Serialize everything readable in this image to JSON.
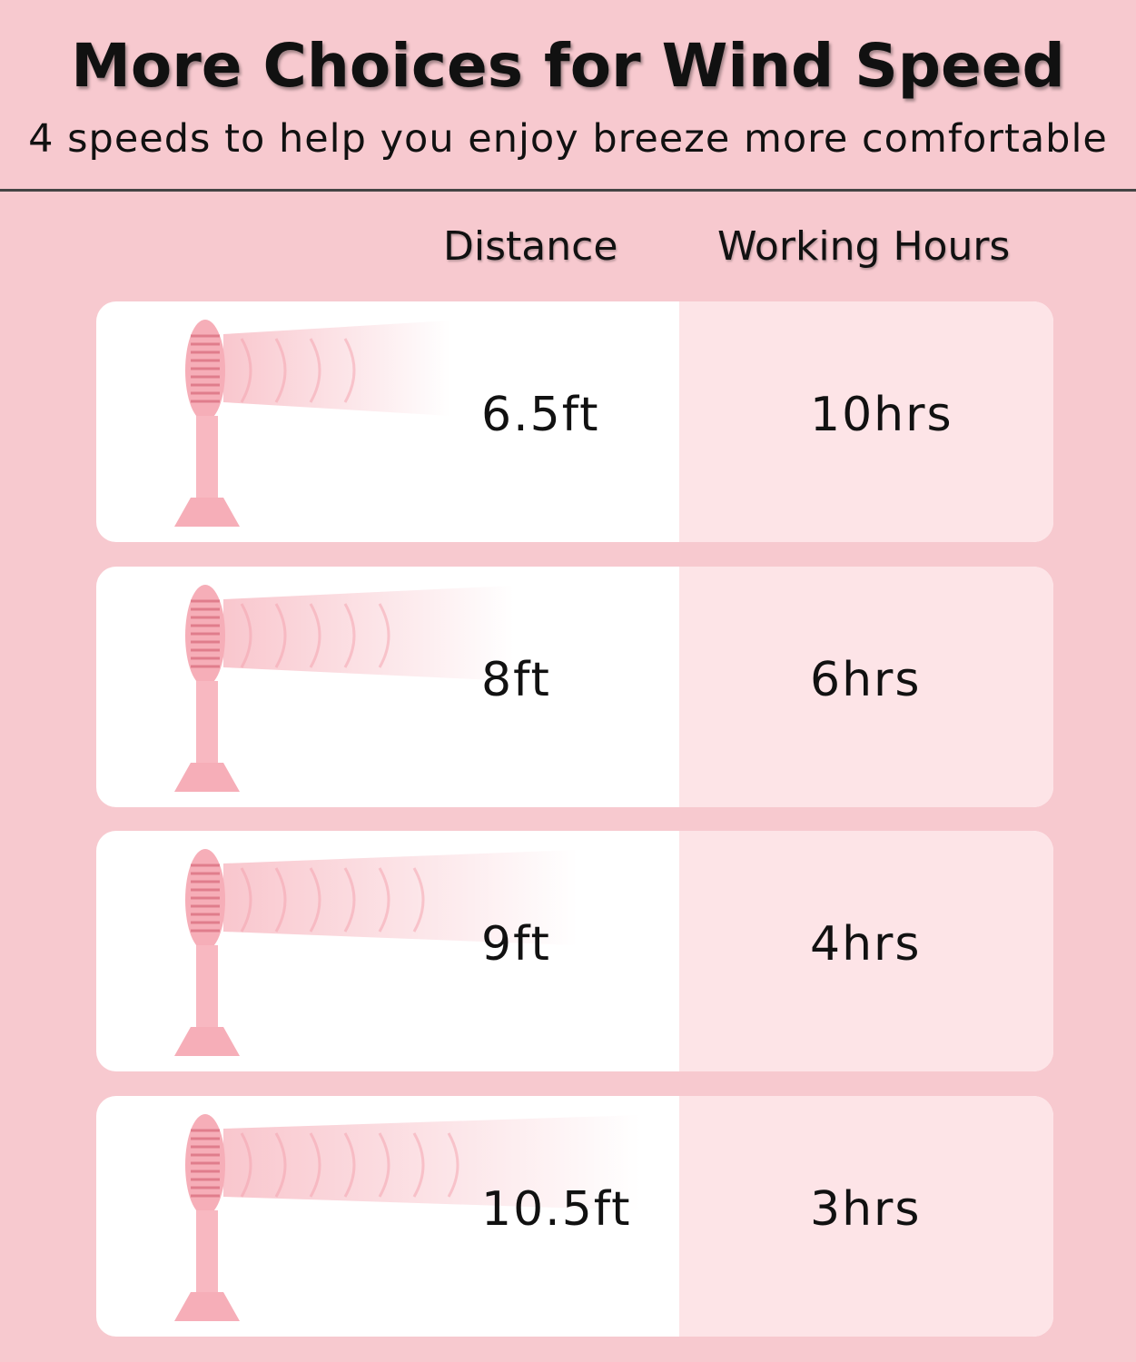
{
  "title": "More Choices for Wind Speed",
  "subtitle": "4 speeds to help you enjoy breeze more comfortable",
  "headers": {
    "distance": "Distance",
    "hours": "Working Hours"
  },
  "rows": [
    {
      "distance": "6.5ft",
      "hours": "10hrs",
      "wind_level": 1
    },
    {
      "distance": "8ft",
      "hours": "6hrs",
      "wind_level": 2
    },
    {
      "distance": "9ft",
      "hours": "4hrs",
      "wind_level": 3
    },
    {
      "distance": "10.5ft",
      "hours": "3hrs",
      "wind_level": 4
    }
  ],
  "colors": {
    "background": "#f7c9cf",
    "fan": "#f6aeb8",
    "hours_panel": "#fde4e7"
  }
}
